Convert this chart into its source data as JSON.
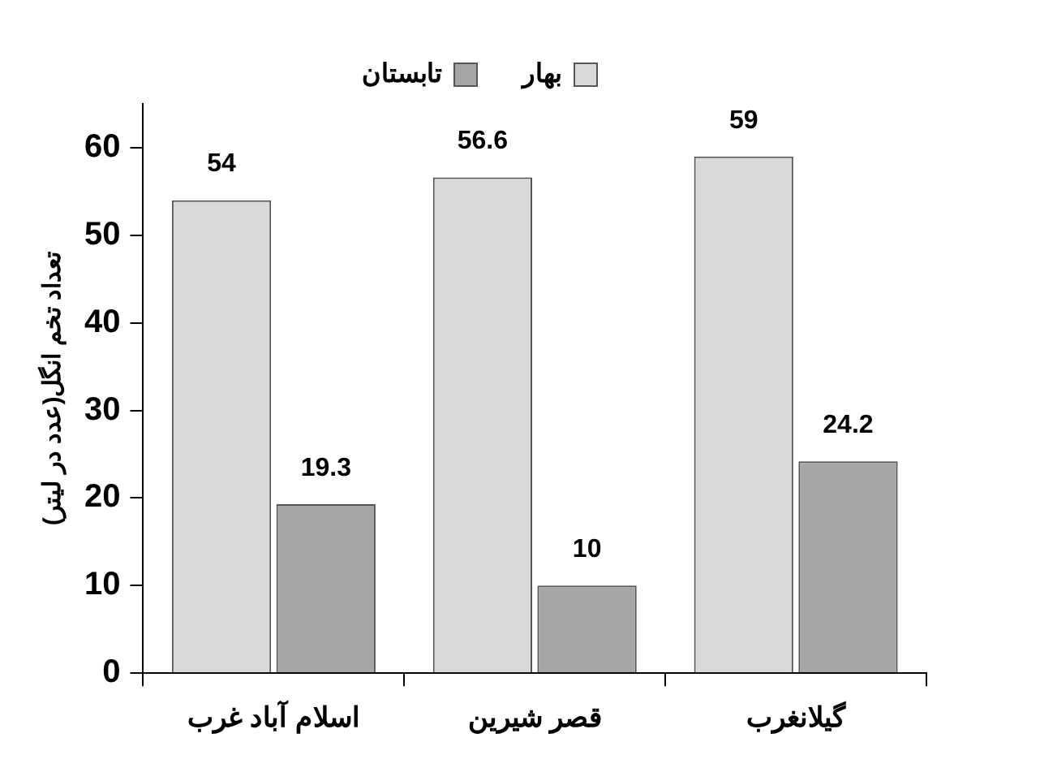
{
  "chart_data": {
    "type": "bar",
    "ylabel": "تعداد تخم انگل(عدد در لیتر)",
    "categories": [
      "اسلام آباد غرب",
      "قصر شیرین",
      "گیلانغرب"
    ],
    "series": [
      {
        "name": "بهار",
        "color": "#d9d9d9",
        "values": [
          54,
          56.6,
          59
        ]
      },
      {
        "name": "تابستان",
        "color": "#a6a6a6",
        "values": [
          19.3,
          10,
          24.2
        ]
      }
    ],
    "ylim": [
      0,
      65
    ],
    "yticks": [
      0,
      10,
      20,
      30,
      40,
      50,
      60
    ],
    "grid": false,
    "legend": "top",
    "data_labels": true
  }
}
